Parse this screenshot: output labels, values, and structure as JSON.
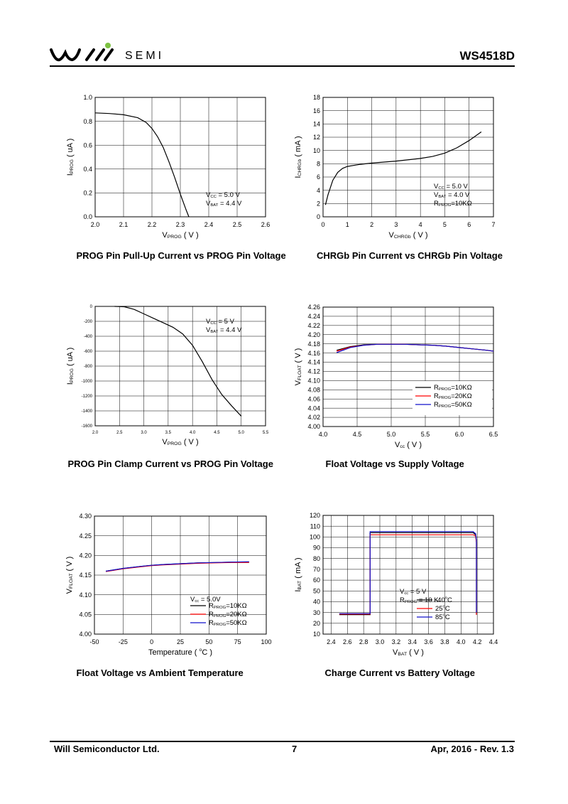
{
  "header": {
    "brand": "SEMI",
    "doc_id": "WS4518D",
    "logo_dot_color": "#7dc242"
  },
  "footer": {
    "company": "Will Semiconductor Ltd.",
    "page": "7",
    "revision": "Apr, 2016 - Rev. 1.3"
  },
  "chart_data": [
    {
      "type": "line",
      "caption": "PROG Pin Pull-Up Current vs PROG Pin Voltage",
      "xlabel": "VPROG ( V )",
      "xlabel_main": "V",
      "xlabel_sub": "PROG",
      "xlabel_unit": " ( V )",
      "ylabel_main": "I",
      "ylabel_sub": "PROG",
      "ylabel_unit": " ( uA )",
      "xlim": [
        2.0,
        2.6
      ],
      "ylim": [
        0.0,
        1.0
      ],
      "xticks": [
        "2.0",
        "2.1",
        "2.2",
        "2.3",
        "2.4",
        "2.5",
        "2.6"
      ],
      "yticks": [
        "0.0",
        "0.2",
        "0.4",
        "0.6",
        "0.8",
        "1.0"
      ],
      "grid": true,
      "annotations": [
        {
          "main": "V",
          "sub": "CC",
          "rest": " = 5.0 V"
        },
        {
          "main": "V",
          "sub": "BAT",
          "rest": " = 4.4 V"
        }
      ],
      "series": [
        {
          "color": "#000000",
          "x": [
            2.0,
            2.05,
            2.1,
            2.15,
            2.18,
            2.2,
            2.22,
            2.24,
            2.26,
            2.28,
            2.3,
            2.32,
            2.33
          ],
          "y": [
            0.87,
            0.865,
            0.855,
            0.83,
            0.79,
            0.74,
            0.67,
            0.58,
            0.46,
            0.33,
            0.19,
            0.06,
            0.0
          ]
        }
      ]
    },
    {
      "type": "line",
      "caption": "CHRGb Pin Current vs CHRGb Pin Voltage",
      "xlabel_main": "V",
      "xlabel_sub": "CHRGb",
      "xlabel_unit": " ( V )",
      "ylabel_main": "I",
      "ylabel_sub": "CHRGb",
      "ylabel_unit": " ( mA )",
      "xlim": [
        0,
        7
      ],
      "ylim": [
        0,
        18
      ],
      "xticks": [
        "0",
        "1",
        "2",
        "3",
        "4",
        "5",
        "6",
        "7"
      ],
      "yticks": [
        "0",
        "2",
        "4",
        "6",
        "8",
        "10",
        "12",
        "14",
        "16",
        "18"
      ],
      "grid": true,
      "annotations": [
        {
          "main": "V",
          "sub": "CC",
          "rest": " = 5.0 V"
        },
        {
          "main": "V",
          "sub": "BAT",
          "rest": " = 4.0 V"
        },
        {
          "main": "R",
          "sub": "PROG",
          "rest": "=10KΩ"
        }
      ],
      "series": [
        {
          "color": "#000000",
          "x": [
            0.1,
            0.2,
            0.4,
            0.6,
            0.8,
            1.0,
            1.5,
            2.0,
            3.0,
            4.0,
            4.5,
            5.0,
            5.5,
            6.0,
            6.5
          ],
          "y": [
            1.8,
            3.3,
            5.5,
            6.7,
            7.3,
            7.6,
            7.9,
            8.1,
            8.4,
            8.8,
            9.1,
            9.6,
            10.4,
            11.5,
            12.8
          ]
        }
      ]
    },
    {
      "type": "line",
      "caption": "PROG Pin Clamp Current vs PROG Pin Voltage",
      "xlabel_main": "V",
      "xlabel_sub": "PROG",
      "xlabel_unit": " ( V )",
      "ylabel_main": "I",
      "ylabel_sub": "PROG",
      "ylabel_unit": " ( uA )",
      "xlim": [
        2.0,
        5.5
      ],
      "ylim": [
        -1600,
        0
      ],
      "xticks": [
        "2.0",
        "2.5",
        "3.0",
        "3.5",
        "4.0",
        "4.5",
        "5.0",
        "5.5"
      ],
      "yticks": [
        "-1600",
        "-1400",
        "-1200",
        "-1000",
        "-800",
        "-600",
        "-400",
        "-200",
        "0"
      ],
      "grid": true,
      "annotations": [
        {
          "main": "V",
          "sub": "CC",
          "rest": " = 5 V"
        },
        {
          "main": "V",
          "sub": "BAT",
          "rest": " = 4.4 V"
        }
      ],
      "series": [
        {
          "color": "#000000",
          "x": [
            2.4,
            2.6,
            2.8,
            3.0,
            3.2,
            3.4,
            3.6,
            3.8,
            4.0,
            4.2,
            4.4,
            4.6,
            4.8,
            5.0
          ],
          "y": [
            0,
            -5,
            -40,
            -100,
            -160,
            -220,
            -280,
            -370,
            -520,
            -740,
            -980,
            -1180,
            -1330,
            -1470
          ]
        }
      ]
    },
    {
      "type": "line",
      "caption": "Float Voltage vs Supply Voltage",
      "xlabel_main": "V",
      "xlabel_sub": "cc",
      "xlabel_unit": " ( V )",
      "ylabel_main": "V",
      "ylabel_sub": "FLOAT",
      "ylabel_unit": " ( V )",
      "xlim": [
        4.0,
        6.5
      ],
      "ylim": [
        4.0,
        4.26
      ],
      "xticks": [
        "4.0",
        "4.5",
        "5.0",
        "5.5",
        "6.0",
        "6.5"
      ],
      "yticks": [
        "4.00",
        "4.02",
        "4.04",
        "4.06",
        "4.08",
        "4.10",
        "4.12",
        "4.14",
        "4.16",
        "4.18",
        "4.20",
        "4.22",
        "4.24",
        "4.26"
      ],
      "grid": true,
      "legend": [
        {
          "main": "R",
          "sub": "PROG",
          "rest": "=10KΩ",
          "color": "#000000"
        },
        {
          "main": "R",
          "sub": "PROG",
          "rest": "=20KΩ",
          "color": "#ff0000"
        },
        {
          "main": "R",
          "sub": "PROG",
          "rest": "=50KΩ",
          "color": "#1010cc"
        }
      ],
      "series": [
        {
          "color": "#000000",
          "x": [
            4.2,
            4.4,
            4.6,
            4.8,
            5.0,
            5.2,
            5.4,
            5.6,
            5.8,
            6.0,
            6.2,
            6.4,
            6.5
          ],
          "y": [
            4.166,
            4.174,
            4.178,
            4.179,
            4.179,
            4.179,
            4.178,
            4.177,
            4.175,
            4.172,
            4.169,
            4.166,
            4.164
          ]
        },
        {
          "color": "#ff0000",
          "x": [
            4.2,
            4.4,
            4.6,
            4.8,
            5.0,
            5.2,
            5.4,
            5.6,
            5.8,
            6.0,
            6.2,
            6.4,
            6.5
          ],
          "y": [
            4.164,
            4.173,
            4.177,
            4.179,
            4.179,
            4.179,
            4.178,
            4.177,
            4.175,
            4.172,
            4.169,
            4.166,
            4.164
          ]
        },
        {
          "color": "#1010cc",
          "x": [
            4.2,
            4.4,
            4.6,
            4.8,
            5.0,
            5.2,
            5.4,
            5.6,
            5.8,
            6.0,
            6.2,
            6.4,
            6.5
          ],
          "y": [
            4.161,
            4.172,
            4.177,
            4.179,
            4.179,
            4.179,
            4.178,
            4.177,
            4.175,
            4.172,
            4.169,
            4.166,
            4.164
          ]
        }
      ]
    },
    {
      "type": "line",
      "caption": "Float Voltage vs Ambient Temperature",
      "xlabel_main": "Temperature ( ",
      "xlabel_sup": "o",
      "xlabel_unit": "C )",
      "ylabel_main": "V",
      "ylabel_sub": "FLOAT",
      "ylabel_unit": " ( V )",
      "xlim": [
        -50,
        100
      ],
      "ylim": [
        4.0,
        4.3
      ],
      "xticks": [
        "-50",
        "-25",
        "0",
        "25",
        "50",
        "75",
        "100"
      ],
      "yticks": [
        "4.00",
        "4.05",
        "4.10",
        "4.15",
        "4.20",
        "4.25",
        "4.30"
      ],
      "grid": true,
      "annotation_title": {
        "main": "V",
        "sub": "cc",
        "rest": " = 5.0V"
      },
      "legend": [
        {
          "main": "R",
          "sub": "PROG",
          "rest": "=10KΩ",
          "color": "#000000"
        },
        {
          "main": "R",
          "sub": "PROG",
          "rest": "=20KΩ",
          "color": "#ff0000"
        },
        {
          "main": "R",
          "sub": "PROG",
          "rest": "=50KΩ",
          "color": "#1010cc"
        }
      ],
      "series": [
        {
          "color": "#000000",
          "x": [
            -40,
            -25,
            -10,
            0,
            10,
            25,
            40,
            55,
            70,
            85
          ],
          "y": [
            4.16,
            4.167,
            4.172,
            4.175,
            4.177,
            4.179,
            4.181,
            4.182,
            4.183,
            4.183
          ]
        },
        {
          "color": "#ff0000",
          "x": [
            -40,
            -25,
            -10,
            0,
            10,
            25,
            40,
            55,
            70,
            85
          ],
          "y": [
            4.159,
            4.166,
            4.171,
            4.174,
            4.176,
            4.178,
            4.18,
            4.181,
            4.182,
            4.182
          ]
        },
        {
          "color": "#1010cc",
          "x": [
            -40,
            -25,
            -10,
            0,
            10,
            25,
            40,
            55,
            70,
            85
          ],
          "y": [
            4.16,
            4.167,
            4.172,
            4.175,
            4.177,
            4.179,
            4.181,
            4.182,
            4.183,
            4.184
          ]
        }
      ]
    },
    {
      "type": "line",
      "caption": "Charge Current vs Battery Voltage",
      "xlabel_main": "V",
      "xlabel_sub": "BAT",
      "xlabel_unit": " ( V )",
      "ylabel_main": "I",
      "ylabel_sub": "BAT",
      "ylabel_unit": " ( mA )",
      "xlim": [
        2.3,
        4.4
      ],
      "ylim": [
        10,
        120
      ],
      "xticks": [
        "2.4",
        "2.6",
        "2.8",
        "3.0",
        "3.2",
        "3.4",
        "3.6",
        "3.8",
        "4.0",
        "4.2",
        "4.4"
      ],
      "yticks": [
        "10",
        "20",
        "30",
        "40",
        "50",
        "60",
        "70",
        "80",
        "90",
        "100",
        "110",
        "120"
      ],
      "grid": true,
      "annotations": [
        {
          "main": "V",
          "sub": "cc",
          "rest": " = 5 V"
        },
        {
          "main": "R",
          "sub": "PROG",
          "rest": " = 10 K"
        }
      ],
      "legend": [
        {
          "main": "-40",
          "sup": "o",
          "rest": "C",
          "color": "#000000"
        },
        {
          "main": "25",
          "sup": "o",
          "rest": "C",
          "color": "#ff0000"
        },
        {
          "main": "85",
          "sup": "o",
          "rest": "C",
          "color": "#1010cc"
        }
      ],
      "series": [
        {
          "color": "#000000",
          "x": [
            2.5,
            2.88,
            2.88,
            3.0,
            3.5,
            4.0,
            4.15,
            4.18,
            4.19,
            4.19
          ],
          "y": [
            28,
            28,
            104,
            104,
            104,
            104,
            104,
            102,
            95,
            28
          ]
        },
        {
          "color": "#ff0000",
          "x": [
            2.5,
            2.88,
            2.88,
            3.0,
            3.5,
            4.0,
            4.15,
            4.18,
            4.19,
            4.19
          ],
          "y": [
            28.5,
            28.5,
            102,
            102,
            102,
            102,
            102,
            101,
            95,
            28
          ]
        },
        {
          "color": "#1010cc",
          "x": [
            2.5,
            2.88,
            2.88,
            3.0,
            3.5,
            4.0,
            4.15,
            4.18,
            4.19,
            4.19
          ],
          "y": [
            29,
            29,
            105,
            105,
            105,
            105,
            105,
            103,
            97,
            30
          ]
        }
      ]
    }
  ]
}
